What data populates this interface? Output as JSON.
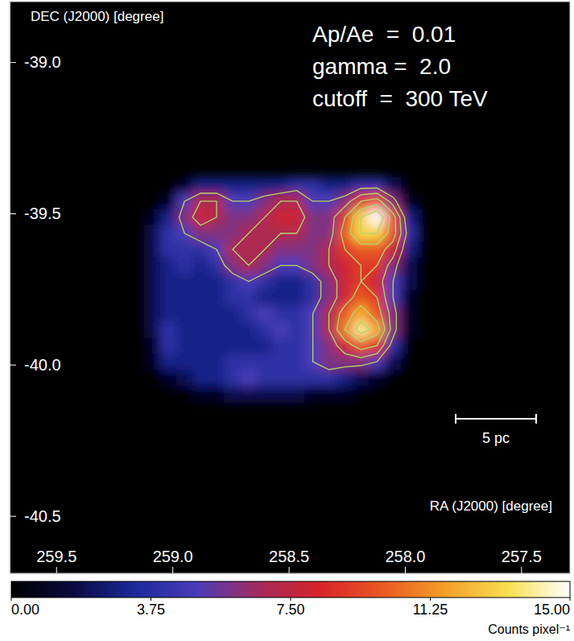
{
  "chart_data": {
    "type": "heatmap",
    "x_label": "RA (J2000) [degree]",
    "y_label": "DEC (J2000) [degree]",
    "annotations": [
      "Ap/Ae  =  0.01",
      "gamma =  2.0",
      "cutoff  =  300 TeV"
    ],
    "xlim": [
      259.7,
      257.29
    ],
    "ylim": [
      -40.69,
      -38.8
    ],
    "xticks": [
      {
        "value": 259.5,
        "label": "259.5"
      },
      {
        "value": 259,
        "label": "259.0"
      },
      {
        "value": 258.5,
        "label": "258.5"
      },
      {
        "value": 258,
        "label": "258.0"
      },
      {
        "value": 257.5,
        "label": "257.5"
      }
    ],
    "yticks": [
      {
        "value": -39,
        "label": "-39.0"
      },
      {
        "value": -39.5,
        "label": "-39.5"
      },
      {
        "value": -40,
        "label": "-40.0"
      },
      {
        "value": -40.5,
        "label": "-40.5"
      }
    ],
    "x": [
      259.086,
      259.017,
      258.948,
      258.879,
      258.81,
      258.741,
      258.672,
      258.603,
      258.534,
      258.466,
      258.397,
      258.328,
      258.259,
      258.19,
      258.121,
      258.052,
      257.983,
      257.914
    ],
    "y": [
      -39.407,
      -39.46,
      -39.513,
      -39.566,
      -39.62,
      -39.673,
      -39.726,
      -39.779,
      -39.832,
      -39.886,
      -39.939,
      -39.992,
      -40.045,
      -40.098
    ],
    "values": [
      [
        0,
        0,
        1,
        3,
        3,
        3,
        3,
        3,
        3,
        4,
        4,
        3,
        3,
        4,
        4,
        2,
        0,
        0
      ],
      [
        0,
        1,
        5,
        7,
        7,
        5,
        5,
        6,
        7,
        7,
        5,
        5,
        6,
        9,
        10,
        6,
        1,
        0
      ],
      [
        1,
        3,
        6,
        8,
        7,
        6,
        6,
        7,
        8,
        8,
        6,
        6,
        9,
        13,
        15,
        10,
        3,
        0
      ],
      [
        2,
        4,
        5,
        6,
        6,
        6,
        7,
        7,
        7,
        7,
        6,
        6,
        10,
        13,
        13,
        10,
        4,
        0
      ],
      [
        2,
        4,
        4,
        4,
        5,
        7,
        7,
        7,
        6,
        6,
        6,
        7,
        9,
        10,
        10,
        8,
        3,
        0
      ],
      [
        2,
        3,
        4,
        3,
        4,
        6,
        7,
        6,
        5,
        5,
        6,
        7,
        8,
        9,
        9,
        6,
        2,
        0
      ],
      [
        2,
        3,
        3,
        3,
        3,
        4,
        5,
        4,
        3,
        3,
        4,
        6,
        8,
        9,
        8,
        5,
        2,
        0
      ],
      [
        2,
        3,
        3,
        3,
        3,
        4,
        4,
        3,
        3,
        3,
        4,
        6,
        8,
        10,
        9,
        5,
        1,
        0
      ],
      [
        2,
        3,
        3,
        3,
        3,
        3,
        4,
        5,
        4,
        4,
        5,
        7,
        10,
        12,
        10,
        6,
        1,
        0
      ],
      [
        2,
        4,
        3,
        3,
        3,
        3,
        3,
        4,
        5,
        4,
        5,
        7,
        11,
        14,
        12,
        6,
        1,
        0
      ],
      [
        1,
        4,
        3,
        3,
        3,
        3,
        3,
        3,
        4,
        4,
        5,
        6,
        8,
        10,
        9,
        4,
        0,
        0
      ],
      [
        1,
        3,
        3,
        3,
        3,
        4,
        4,
        4,
        4,
        4,
        5,
        6,
        6,
        6,
        5,
        2,
        0,
        0
      ],
      [
        0,
        1,
        2,
        3,
        3,
        4,
        5,
        4,
        4,
        4,
        4,
        4,
        3,
        2,
        1,
        0,
        0,
        0
      ],
      [
        0,
        0,
        0,
        1,
        1,
        2,
        2,
        2,
        2,
        2,
        1,
        1,
        1,
        0,
        0,
        0,
        0,
        0
      ]
    ],
    "contours": {
      "levels": [
        5,
        7,
        9,
        11,
        13
      ],
      "color": "#b5d66a"
    },
    "colorbar": {
      "range": [
        0,
        15
      ],
      "ticks": [
        {
          "value": 0,
          "label": "0.00"
        },
        {
          "value": 3.75,
          "label": "3.75"
        },
        {
          "value": 7.5,
          "label": "7.50"
        },
        {
          "value": 11.25,
          "label": "11.25"
        },
        {
          "value": 15,
          "label": "15.00"
        }
      ],
      "label": "Counts pixel⁻¹",
      "colors": [
        "#000000",
        "#0a0a40",
        "#1c2a9a",
        "#4b3cb8",
        "#a52a5a",
        "#d8242a",
        "#ea5a24",
        "#f4a02a",
        "#f8e050",
        "#ffffff"
      ]
    },
    "scale_bar": {
      "label": "5 pc",
      "length": 0.266
    }
  }
}
